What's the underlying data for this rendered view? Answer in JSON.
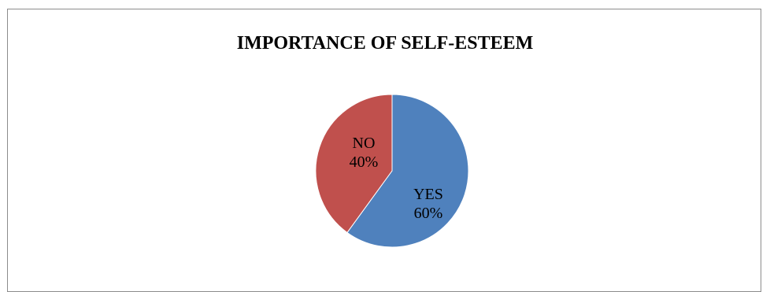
{
  "chart_data": {
    "type": "pie",
    "title": "IMPORTANCE OF SELF-ESTEEM",
    "categories": [
      "YES",
      "NO"
    ],
    "values": [
      60,
      40
    ],
    "labels": [
      "60%",
      "40%"
    ],
    "colors": [
      "#4f81bd",
      "#c0504d"
    ],
    "legend": "none"
  }
}
